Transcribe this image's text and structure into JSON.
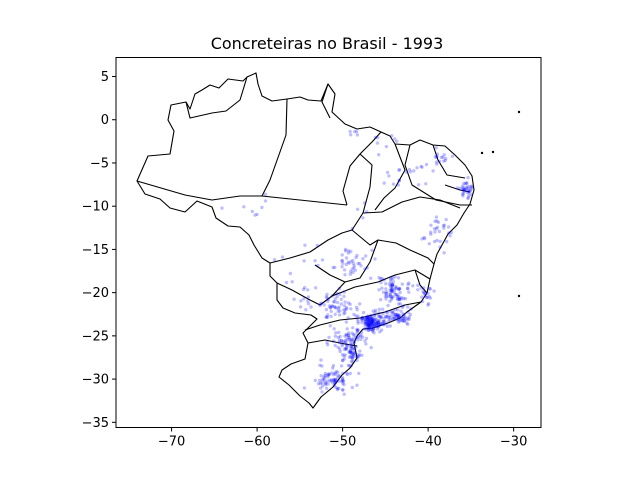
{
  "chart_data": {
    "type": "scatter",
    "title": "Concreteiras no Brasil - 1993",
    "xlabel": "",
    "ylabel": "",
    "xlim": [
      -76.5,
      -26.8
    ],
    "ylim": [
      -35.6,
      7.2
    ],
    "xticks": [
      -70,
      -60,
      -50,
      -40,
      -30
    ],
    "yticks": [
      5,
      0,
      -5,
      -10,
      -15,
      -20,
      -25,
      -30,
      -35
    ],
    "xtick_labels": [
      "−70",
      "−60",
      "−50",
      "−40",
      "−30"
    ],
    "ytick_labels": [
      "5",
      "0",
      "−5",
      "−10",
      "−15",
      "−20",
      "−25",
      "−30",
      "−35"
    ],
    "grid": false,
    "legend": "none",
    "point_color": "#0000ff",
    "point_alpha": 0.25,
    "basemap": "brazil-state-borders",
    "series": [
      {
        "clusters": [
          {
            "center": [
              -46.6,
              -23.5
            ],
            "spread": [
              1.4,
              0.9
            ],
            "count": 160
          },
          {
            "center": [
              -43.5,
              -22.8
            ],
            "spread": [
              1.2,
              0.6
            ],
            "count": 60
          },
          {
            "center": [
              -44.0,
              -19.9
            ],
            "spread": [
              1.6,
              1.5
            ],
            "count": 90
          },
          {
            "center": [
              -49.3,
              -25.4
            ],
            "spread": [
              1.8,
              1.1
            ],
            "count": 70
          },
          {
            "center": [
              -51.2,
              -30.0
            ],
            "spread": [
              2.0,
              1.3
            ],
            "count": 80
          },
          {
            "center": [
              -48.8,
              -27.3
            ],
            "spread": [
              1.0,
              0.9
            ],
            "count": 45
          },
          {
            "center": [
              -50.5,
              -21.5
            ],
            "spread": [
              1.8,
              1.3
            ],
            "count": 60
          },
          {
            "center": [
              -49.3,
              -16.7
            ],
            "spread": [
              1.8,
              1.6
            ],
            "count": 40
          },
          {
            "center": [
              -40.3,
              -20.2
            ],
            "spread": [
              0.8,
              1.0
            ],
            "count": 20
          },
          {
            "center": [
              -38.8,
              -12.8
            ],
            "spread": [
              1.6,
              1.6
            ],
            "count": 30
          },
          {
            "center": [
              -35.5,
              -8.1
            ],
            "spread": [
              0.8,
              1.0
            ],
            "count": 35
          },
          {
            "center": [
              -38.5,
              -4.5
            ],
            "spread": [
              1.0,
              0.8
            ],
            "count": 15
          },
          {
            "center": [
              -42.0,
              -6.0
            ],
            "spread": [
              2.5,
              2.0
            ],
            "count": 20
          },
          {
            "center": [
              -55.0,
              -17.0
            ],
            "spread": [
              2.5,
              3.0
            ],
            "count": 12
          },
          {
            "center": [
              -54.5,
              -20.5
            ],
            "spread": [
              1.2,
              1.5
            ],
            "count": 12
          },
          {
            "center": [
              -45.0,
              -2.5
            ],
            "spread": [
              1.5,
              1.0
            ],
            "count": 8
          },
          {
            "center": [
              -48.5,
              -1.5
            ],
            "spread": [
              0.6,
              0.5
            ],
            "count": 5
          },
          {
            "center": [
              -60.0,
              -10.0
            ],
            "spread": [
              2.5,
              1.5
            ],
            "count": 8
          },
          {
            "center": [
              -48.0,
              -10.5
            ],
            "spread": [
              1.0,
              1.5
            ],
            "count": 5
          }
        ]
      }
    ]
  }
}
